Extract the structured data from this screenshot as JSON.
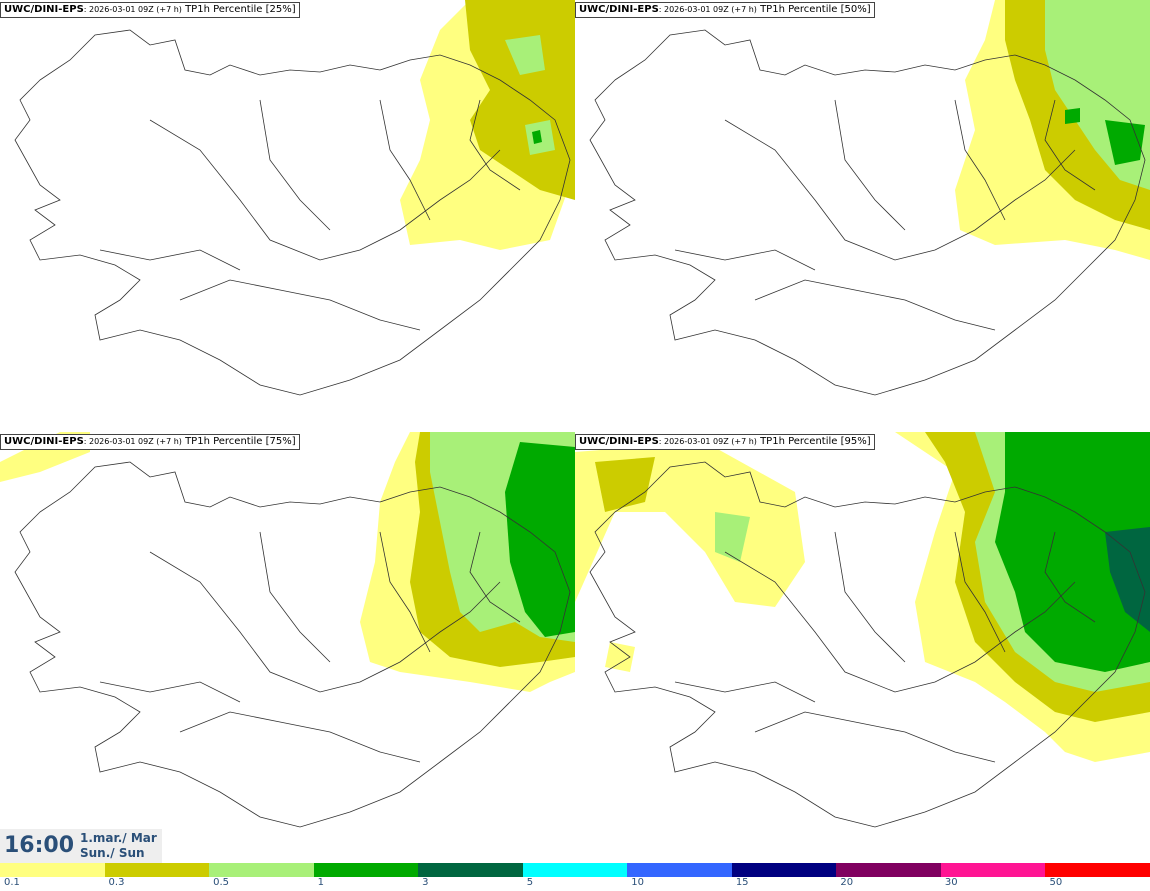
{
  "panels": [
    {
      "source": "UWC/DINI-EPS",
      "run": ": 2026-03-01 09Z (+7 h)",
      "title": " TP1h Percentile [25%]"
    },
    {
      "source": "UWC/DINI-EPS",
      "run": ": 2026-03-01 09Z (+7 h)",
      "title": " TP1h Percentile [50%]"
    },
    {
      "source": "UWC/DINI-EPS",
      "run": ": 2026-03-01 09Z (+7 h)",
      "title": " TP1h Percentile [75%]"
    },
    {
      "source": "UWC/DINI-EPS",
      "run": ": 2026-03-01 09Z (+7 h)",
      "title": " TP1h Percentile [95%]"
    }
  ],
  "time": {
    "hour": "16:00",
    "date_line": "1.mar./ Mar",
    "day_line": "Sun./ Sun"
  },
  "legend": {
    "colors": [
      "#ffff80",
      "#cccc00",
      "#a8f078",
      "#00aa00",
      "#006640",
      "#00ffff",
      "#3366ff",
      "#000080",
      "#800060",
      "#ff1493",
      "#ff0000"
    ],
    "ticks": [
      "0.1",
      "0.3",
      "0.5",
      "1",
      "3",
      "5",
      "10",
      "15",
      "20",
      "30",
      "50"
    ]
  }
}
